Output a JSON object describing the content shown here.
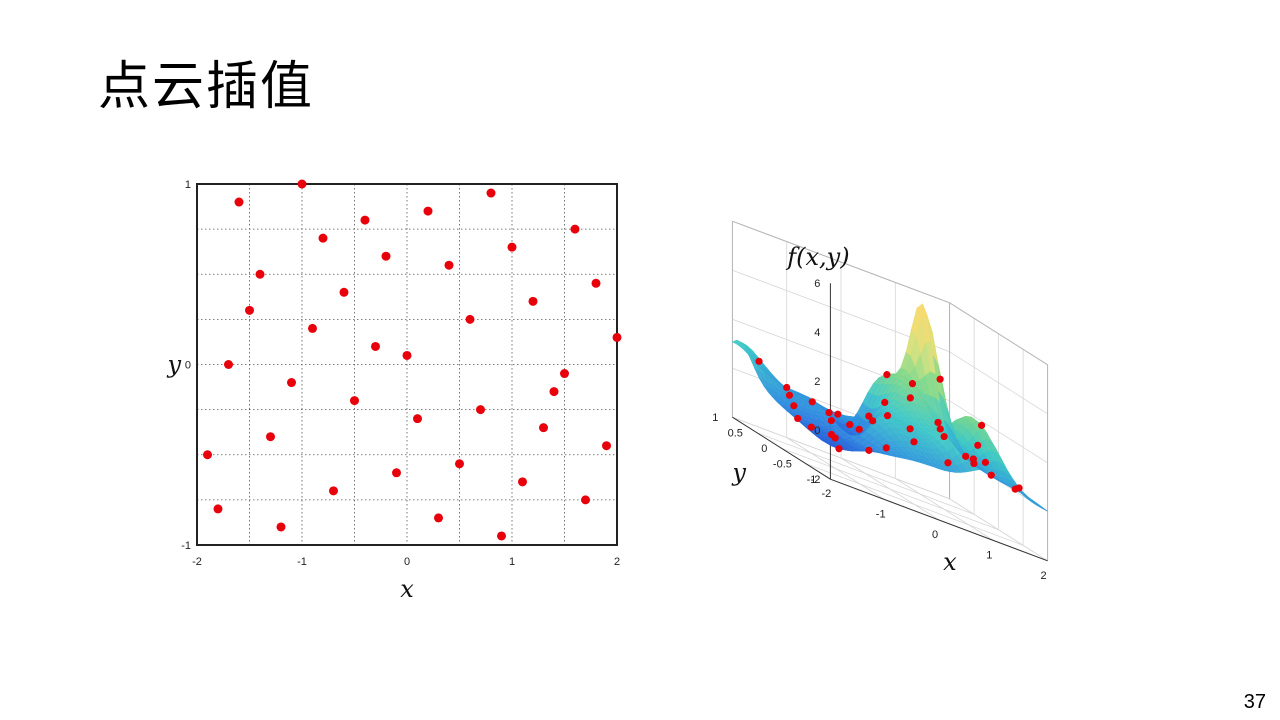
{
  "slide": {
    "title": "点云插值",
    "page_number": "37"
  },
  "chart_data": [
    {
      "type": "scatter",
      "xlabel": "x",
      "ylabel": "y",
      "xlim": [
        -2,
        2
      ],
      "ylim": [
        -1,
        1
      ],
      "xticks": [
        "-2",
        "-1",
        "0",
        "1",
        "2"
      ],
      "yticks": [
        "-1",
        "0",
        "1"
      ],
      "grid": true,
      "marker_color": "#e8000b",
      "points": [
        {
          "x": -1.6,
          "y": 0.9
        },
        {
          "x": -1.0,
          "y": 1.0
        },
        {
          "x": 0.8,
          "y": 0.95
        },
        {
          "x": 0.2,
          "y": 0.85
        },
        {
          "x": -0.4,
          "y": 0.8
        },
        {
          "x": 1.6,
          "y": 0.75
        },
        {
          "x": -0.8,
          "y": 0.7
        },
        {
          "x": 1.0,
          "y": 0.65
        },
        {
          "x": -0.2,
          "y": 0.6
        },
        {
          "x": 0.4,
          "y": 0.55
        },
        {
          "x": -1.4,
          "y": 0.5
        },
        {
          "x": 1.8,
          "y": 0.45
        },
        {
          "x": -0.6,
          "y": 0.4
        },
        {
          "x": 1.2,
          "y": 0.35
        },
        {
          "x": -1.5,
          "y": 0.3
        },
        {
          "x": 0.6,
          "y": 0.25
        },
        {
          "x": -0.9,
          "y": 0.2
        },
        {
          "x": 2.0,
          "y": 0.15
        },
        {
          "x": -0.3,
          "y": 0.1
        },
        {
          "x": 0.0,
          "y": 0.05
        },
        {
          "x": -1.7,
          "y": 0.0
        },
        {
          "x": 1.5,
          "y": -0.05
        },
        {
          "x": -1.1,
          "y": -0.1
        },
        {
          "x": 1.4,
          "y": -0.15
        },
        {
          "x": -0.5,
          "y": -0.2
        },
        {
          "x": 0.7,
          "y": -0.25
        },
        {
          "x": 0.1,
          "y": -0.3
        },
        {
          "x": 1.3,
          "y": -0.35
        },
        {
          "x": -1.3,
          "y": -0.4
        },
        {
          "x": 1.9,
          "y": -0.45
        },
        {
          "x": -1.9,
          "y": -0.5
        },
        {
          "x": 0.5,
          "y": -0.55
        },
        {
          "x": -0.1,
          "y": -0.6
        },
        {
          "x": 1.1,
          "y": -0.65
        },
        {
          "x": -0.7,
          "y": -0.7
        },
        {
          "x": 1.7,
          "y": -0.75
        },
        {
          "x": -1.8,
          "y": -0.8
        },
        {
          "x": 0.3,
          "y": -0.85
        },
        {
          "x": -1.2,
          "y": -0.9
        },
        {
          "x": 0.9,
          "y": -0.95
        }
      ]
    },
    {
      "type": "surface",
      "zlabel": "f(x,y)",
      "xlabel": "x",
      "ylabel": "y",
      "xlim": [
        -2,
        2
      ],
      "ylim": [
        -1,
        1
      ],
      "zlim": [
        -2,
        6
      ],
      "xticks": [
        "-2",
        "-1",
        "0",
        "1",
        "2"
      ],
      "yticks": [
        "-1",
        "-0.5",
        "0",
        "0.5",
        "1"
      ],
      "zticks": [
        "-2",
        "0",
        "2",
        "4",
        "6"
      ],
      "grid": true,
      "colormap": [
        "#2a3fd6",
        "#2f8fe0",
        "#3ec8c8",
        "#7fd88a",
        "#d8e07a",
        "#f5d96b"
      ],
      "marker_color": "#e8000b"
    }
  ]
}
